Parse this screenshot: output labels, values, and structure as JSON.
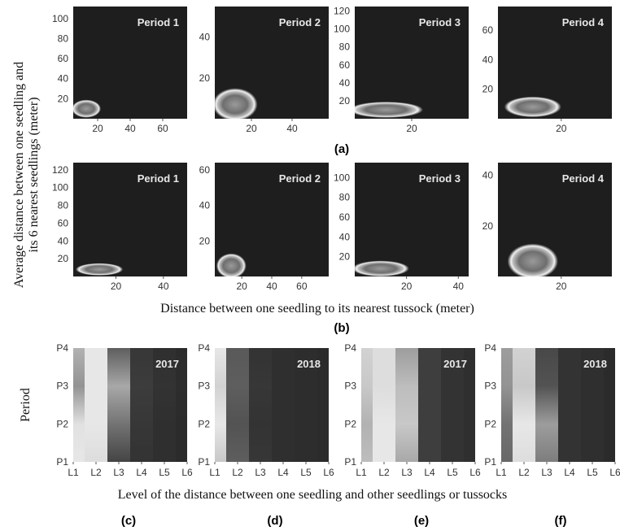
{
  "figure": {
    "y_axis_title_top": [
      "Average distance between one seedling and",
      "its 6 nearest seedlings (meter)"
    ],
    "x_axis_title_top": "Distance between one seedling to its nearest tussock (meter)",
    "y_axis_title_bottom": "Period",
    "x_axis_title_bottom": "Level of the distance between one seedling and other seedlings or tussocks",
    "panel_labels": {
      "a": "(a)",
      "b": "(b)",
      "c": "(c)",
      "d": "(d)",
      "e": "(e)",
      "f": "(f)"
    }
  },
  "colors": {
    "background": "#1e1e1e",
    "peak": "#f2f2f2",
    "text_on_panel": "#e8e8e8"
  },
  "chart_data": [
    {
      "type": "heatmap",
      "group": "(a)",
      "title": "Period 1",
      "x_ticks": [
        20,
        40,
        60
      ],
      "y_ticks": [
        20,
        40,
        60,
        80,
        100
      ],
      "xlim": [
        5,
        75
      ],
      "ylim": [
        0,
        112
      ],
      "hotspot": {
        "x": 13,
        "y": 10,
        "rx": 9,
        "ry": 9
      }
    },
    {
      "type": "heatmap",
      "group": "(a)",
      "title": "Period 2",
      "x_ticks": [
        20,
        40
      ],
      "y_ticks": [
        20,
        40
      ],
      "xlim": [
        2,
        58
      ],
      "ylim": [
        0,
        55
      ],
      "hotspot": {
        "x": 12,
        "y": 7,
        "rx": 11,
        "ry": 8
      }
    },
    {
      "type": "heatmap",
      "group": "(a)",
      "title": "Period 3",
      "x_ticks": [
        20
      ],
      "y_ticks": [
        20,
        40,
        60,
        80,
        100,
        120
      ],
      "xlim": [
        0,
        40
      ],
      "ylim": [
        0,
        125
      ],
      "hotspot": {
        "x": 11,
        "y": 10,
        "rx": 13,
        "ry": 9
      }
    },
    {
      "type": "heatmap",
      "group": "(a)",
      "title": "Period 4",
      "x_ticks": [
        20
      ],
      "y_ticks": [
        20,
        40,
        60
      ],
      "xlim": [
        0,
        36
      ],
      "ylim": [
        0,
        76
      ],
      "hotspot": {
        "x": 11,
        "y": 8,
        "rx": 9,
        "ry": 7
      }
    },
    {
      "type": "heatmap",
      "group": "(b)",
      "title": "Period 1",
      "x_ticks": [
        20,
        40
      ],
      "y_ticks": [
        20,
        40,
        60,
        80,
        100,
        120
      ],
      "xlim": [
        2,
        50
      ],
      "ylim": [
        0,
        128
      ],
      "hotspot": {
        "x": 13,
        "y": 8,
        "rx": 10,
        "ry": 7
      }
    },
    {
      "type": "heatmap",
      "group": "(b)",
      "title": "Period 2",
      "x_ticks": [
        20,
        40,
        60
      ],
      "y_ticks": [
        20,
        40,
        60
      ],
      "xlim": [
        2,
        78
      ],
      "ylim": [
        0,
        64
      ],
      "hotspot": {
        "x": 13,
        "y": 6,
        "rx": 10,
        "ry": 7
      }
    },
    {
      "type": "heatmap",
      "group": "(b)",
      "title": "Period 3",
      "x_ticks": [
        20,
        40
      ],
      "y_ticks": [
        20,
        40,
        60,
        80,
        100
      ],
      "xlim": [
        0,
        44
      ],
      "ylim": [
        0,
        115
      ],
      "hotspot": {
        "x": 10,
        "y": 8,
        "rx": 11,
        "ry": 8
      }
    },
    {
      "type": "heatmap",
      "group": "(b)",
      "title": "Period 4",
      "x_ticks": [
        20
      ],
      "y_ticks": [
        20,
        40
      ],
      "xlim": [
        0,
        36
      ],
      "ylim": [
        0,
        45
      ],
      "hotspot": {
        "x": 11,
        "y": 6,
        "rx": 8,
        "ry": 7
      }
    },
    {
      "type": "heatmap",
      "group": "(c)",
      "title": "2017",
      "x": [
        "L1",
        "L2",
        "L3",
        "L4",
        "L5",
        "L6"
      ],
      "y": [
        "P1",
        "P2",
        "P3",
        "P4"
      ],
      "intensity": [
        [
          0.95,
          0.9,
          0.18,
          0.1,
          0.08,
          0.06
        ],
        [
          0.92,
          0.95,
          0.4,
          0.12,
          0.08,
          0.06
        ],
        [
          0.55,
          0.95,
          0.65,
          0.14,
          0.1,
          0.07
        ],
        [
          0.7,
          0.95,
          0.3,
          0.12,
          0.08,
          0.06
        ]
      ]
    },
    {
      "type": "heatmap",
      "group": "(d)",
      "title": "2018",
      "x": [
        "L1",
        "L2",
        "L3",
        "L4",
        "L5",
        "L6"
      ],
      "y": [
        "P1",
        "P2",
        "P3",
        "P4"
      ],
      "intensity": [
        [
          0.8,
          0.3,
          0.12,
          0.08,
          0.07,
          0.06
        ],
        [
          0.95,
          0.25,
          0.1,
          0.08,
          0.07,
          0.06
        ],
        [
          0.85,
          0.3,
          0.12,
          0.08,
          0.07,
          0.06
        ],
        [
          0.95,
          0.28,
          0.1,
          0.08,
          0.07,
          0.06
        ]
      ]
    },
    {
      "type": "heatmap",
      "group": "(e)",
      "title": "2017",
      "x": [
        "L1",
        "L2",
        "L3",
        "L4",
        "L5",
        "L6"
      ],
      "y": [
        "P1",
        "P2",
        "P3",
        "P4"
      ],
      "intensity": [
        [
          0.75,
          0.95,
          0.65,
          0.15,
          0.1,
          0.08
        ],
        [
          0.7,
          0.95,
          0.8,
          0.15,
          0.1,
          0.08
        ],
        [
          0.8,
          0.9,
          0.75,
          0.15,
          0.1,
          0.08
        ],
        [
          0.85,
          0.9,
          0.6,
          0.15,
          0.1,
          0.08
        ]
      ]
    },
    {
      "type": "heatmap",
      "group": "(f)",
      "title": "2018",
      "x": [
        "L1",
        "L2",
        "L3",
        "L4",
        "L5",
        "L6"
      ],
      "y": [
        "P1",
        "P2",
        "P3",
        "P4"
      ],
      "intensity": [
        [
          0.35,
          0.9,
          0.45,
          0.1,
          0.08,
          0.06
        ],
        [
          0.4,
          0.95,
          0.6,
          0.1,
          0.08,
          0.06
        ],
        [
          0.55,
          0.8,
          0.25,
          0.1,
          0.08,
          0.06
        ],
        [
          0.6,
          0.85,
          0.2,
          0.1,
          0.08,
          0.06
        ]
      ]
    }
  ]
}
